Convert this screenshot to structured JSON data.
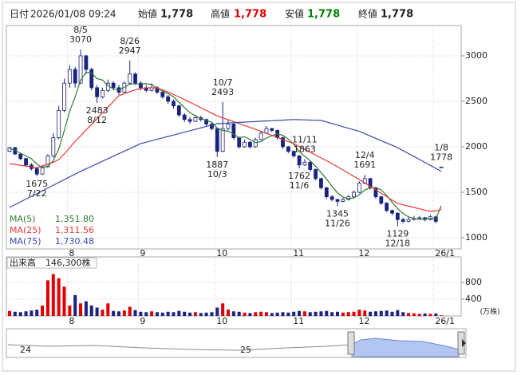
{
  "header": [
    {
      "label": "日付",
      "value": "2026/01/08 09:24",
      "color": "#222222"
    },
    {
      "label": "始値",
      "value": "1,778",
      "color": "#222222"
    },
    {
      "label": "高値",
      "value": "1,778",
      "color": "#e00000"
    },
    {
      "label": "安値",
      "value": "1,778",
      "color": "#008000"
    },
    {
      "label": "終値",
      "value": "1,778",
      "color": "#222222"
    }
  ],
  "chart_data": {
    "type": "candlestick",
    "categories": [
      null,
      null,
      null,
      null,
      null,
      null,
      null,
      null,
      null,
      null,
      null,
      "8",
      null,
      null,
      null,
      null,
      null,
      null,
      null,
      null,
      null,
      null,
      null,
      null,
      "9",
      null,
      null,
      null,
      null,
      null,
      null,
      null,
      null,
      null,
      null,
      null,
      null,
      null,
      "10",
      null,
      null,
      null,
      null,
      null,
      null,
      null,
      null,
      null,
      null,
      null,
      null,
      null,
      "11",
      null,
      null,
      null,
      null,
      null,
      null,
      null,
      null,
      null,
      null,
      null,
      "12",
      null,
      null,
      null,
      null,
      null,
      null,
      null,
      null,
      null,
      null,
      null,
      null,
      null,
      "26/1",
      null
    ],
    "candles": [
      [
        1950,
        2000,
        1940,
        1990
      ],
      [
        1990,
        2000,
        1910,
        1920
      ],
      [
        1920,
        1930,
        1850,
        1870
      ],
      [
        1870,
        1880,
        1780,
        1800
      ],
      [
        1800,
        1820,
        1740,
        1760
      ],
      [
        1760,
        1780,
        1675,
        1700
      ],
      [
        1700,
        1800,
        1690,
        1780
      ],
      [
        1780,
        1920,
        1770,
        1900
      ],
      [
        1900,
        2150,
        1880,
        2100
      ],
      [
        2100,
        2450,
        2080,
        2400
      ],
      [
        2400,
        2750,
        2380,
        2700
      ],
      [
        2700,
        2900,
        2650,
        2850
      ],
      [
        2850,
        2880,
        2650,
        2700
      ],
      [
        2700,
        3070,
        2690,
        3000
      ],
      [
        3000,
        3010,
        2800,
        2850
      ],
      [
        2850,
        2870,
        2620,
        2650
      ],
      [
        2650,
        2680,
        2483,
        2550
      ],
      [
        2550,
        2650,
        2530,
        2620
      ],
      [
        2620,
        2740,
        2600,
        2700
      ],
      [
        2700,
        2720,
        2620,
        2650
      ],
      [
        2650,
        2680,
        2570,
        2600
      ],
      [
        2600,
        2720,
        2590,
        2700
      ],
      [
        2700,
        2947,
        2690,
        2800
      ],
      [
        2800,
        2820,
        2680,
        2700
      ],
      [
        2700,
        2720,
        2620,
        2650
      ],
      [
        2650,
        2680,
        2600,
        2620
      ],
      [
        2620,
        2700,
        2610,
        2650
      ],
      [
        2650,
        2670,
        2580,
        2600
      ],
      [
        2600,
        2620,
        2530,
        2550
      ],
      [
        2550,
        2570,
        2470,
        2500
      ],
      [
        2500,
        2520,
        2420,
        2450
      ],
      [
        2450,
        2460,
        2330,
        2350
      ],
      [
        2350,
        2370,
        2270,
        2300
      ],
      [
        2300,
        2330,
        2250,
        2280
      ],
      [
        2280,
        2350,
        2270,
        2320
      ],
      [
        2320,
        2340,
        2280,
        2300
      ],
      [
        2300,
        2310,
        2230,
        2250
      ],
      [
        2250,
        2270,
        2180,
        2200
      ],
      [
        2200,
        2210,
        1887,
        1950
      ],
      [
        1950,
        2493,
        1940,
        2200
      ],
      [
        2200,
        2300,
        2180,
        2250
      ],
      [
        2250,
        2260,
        2080,
        2100
      ],
      [
        2100,
        2110,
        1980,
        2000
      ],
      [
        2000,
        2080,
        1990,
        2050
      ],
      [
        2050,
        2060,
        1980,
        2000
      ],
      [
        2000,
        2100,
        1990,
        2080
      ],
      [
        2080,
        2170,
        2070,
        2150
      ],
      [
        2150,
        2230,
        2140,
        2200
      ],
      [
        2200,
        2210,
        2160,
        2180
      ],
      [
        2180,
        2190,
        2080,
        2100
      ],
      [
        2100,
        2110,
        1980,
        2000
      ],
      [
        2000,
        2010,
        1930,
        1950
      ],
      [
        1950,
        1960,
        1880,
        1900
      ],
      [
        1900,
        1910,
        1762,
        1800
      ],
      [
        1800,
        1863,
        1790,
        1830
      ],
      [
        1830,
        1840,
        1730,
        1750
      ],
      [
        1750,
        1760,
        1630,
        1650
      ],
      [
        1650,
        1660,
        1530,
        1550
      ],
      [
        1550,
        1560,
        1430,
        1450
      ],
      [
        1450,
        1470,
        1400,
        1420
      ],
      [
        1420,
        1430,
        1345,
        1400
      ],
      [
        1400,
        1440,
        1390,
        1420
      ],
      [
        1420,
        1470,
        1410,
        1450
      ],
      [
        1450,
        1520,
        1440,
        1500
      ],
      [
        1500,
        1620,
        1490,
        1600
      ],
      [
        1600,
        1691,
        1590,
        1650
      ],
      [
        1650,
        1660,
        1530,
        1550
      ],
      [
        1550,
        1560,
        1430,
        1450
      ],
      [
        1450,
        1460,
        1360,
        1380
      ],
      [
        1380,
        1390,
        1280,
        1300
      ],
      [
        1300,
        1310,
        1250,
        1270
      ],
      [
        1270,
        1280,
        1129,
        1200
      ],
      [
        1200,
        1220,
        1160,
        1180
      ],
      [
        1180,
        1230,
        1170,
        1200
      ],
      [
        1200,
        1240,
        1190,
        1210
      ],
      [
        1210,
        1240,
        1200,
        1220
      ],
      [
        1220,
        1230,
        1180,
        1200
      ],
      [
        1200,
        1250,
        1190,
        1230
      ],
      [
        1230,
        1240,
        1160,
        1180
      ],
      [
        1778,
        1778,
        1778,
        1778
      ]
    ],
    "up_color": "#ffffff",
    "down_color": "#1a237e",
    "candle_edge": "#1a237e",
    "series": [
      {
        "name": "MA(5)",
        "color": "#2e7d32",
        "current": {
          "value": 1351.8,
          "label": "1,351.80"
        },
        "values": [
          1980,
          1960,
          1930,
          1900,
          1868,
          1810,
          1768,
          1788,
          1848,
          1976,
          2176,
          2390,
          2550,
          2730,
          2820,
          2810,
          2750,
          2734,
          2674,
          2634,
          2624,
          2654,
          2690,
          2690,
          2690,
          2694,
          2684,
          2644,
          2614,
          2584,
          2550,
          2490,
          2430,
          2376,
          2340,
          2310,
          2290,
          2270,
          2204,
          2180,
          2170,
          2140,
          2100,
          2110,
          2080,
          2046,
          2056,
          2096,
          2122,
          2142,
          2126,
          2086,
          2026,
          1950,
          1896,
          1846,
          1786,
          1716,
          1646,
          1564,
          1494,
          1448,
          1428,
          1438,
          1474,
          1524,
          1550,
          1550,
          1526,
          1466,
          1390,
          1320,
          1266,
          1230,
          1212,
          1202,
          1206,
          1212,
          1208,
          1351.8
        ]
      },
      {
        "name": "MA(25)",
        "color": "#e53935",
        "current": {
          "value": 1311.56,
          "label": "1,311.56"
        },
        "values": [
          1815,
          1806,
          1797,
          1788,
          1779,
          1770,
          1790,
          1810,
          1830,
          1860,
          1920,
          1990,
          2060,
          2120,
          2183,
          2246,
          2309,
          2372,
          2435,
          2500,
          2560,
          2585,
          2605,
          2625,
          2640,
          2648,
          2650,
          2645,
          2625,
          2600,
          2575,
          2548,
          2520,
          2490,
          2460,
          2430,
          2400,
          2370,
          2340,
          2318,
          2297,
          2276,
          2255,
          2234,
          2213,
          2191,
          2170,
          2148,
          2125,
          2103,
          2080,
          2058,
          2035,
          2004,
          1972,
          1941,
          1909,
          1878,
          1846,
          1815,
          1780,
          1745,
          1710,
          1675,
          1640,
          1602,
          1565,
          1527,
          1490,
          1452,
          1415,
          1377,
          1362,
          1348,
          1333,
          1318,
          1304,
          1290,
          1295,
          1311.56
        ]
      },
      {
        "name": "MA(75)",
        "color": "#3949ab",
        "current": {
          "value": 1730.48,
          "label": "1,730.48"
        },
        "values": [
          1333,
          1364,
          1394,
          1425,
          1455,
          1486,
          1516,
          1547,
          1578,
          1608,
          1639,
          1669,
          1700,
          1730,
          1758,
          1785,
          1813,
          1841,
          1869,
          1896,
          1924,
          1952,
          1980,
          2007,
          2035,
          2051,
          2066,
          2082,
          2098,
          2114,
          2129,
          2145,
          2161,
          2176,
          2192,
          2208,
          2224,
          2239,
          2255,
          2258,
          2261,
          2265,
          2268,
          2271,
          2274,
          2277,
          2281,
          2284,
          2287,
          2290,
          2293,
          2297,
          2300,
          2298,
          2296,
          2294,
          2292,
          2290,
          2273,
          2256,
          2239,
          2221,
          2204,
          2187,
          2170,
          2144,
          2119,
          2093,
          2067,
          2041,
          2016,
          1990,
          1958,
          1925,
          1893,
          1860,
          1828,
          1795,
          1763,
          1730.48
        ]
      }
    ],
    "annotations": [
      {
        "date": "7/22",
        "price": 1675,
        "at": "low"
      },
      {
        "date": "8/5",
        "price": 3070,
        "at": "high"
      },
      {
        "date": "8/12",
        "price": 2483,
        "at": "low"
      },
      {
        "date": "8/26",
        "price": 2947,
        "at": "high"
      },
      {
        "date": "10/3",
        "price": 1887,
        "at": "low"
      },
      {
        "date": "10/7",
        "price": 2493,
        "at": "high"
      },
      {
        "date": "11/6",
        "price": 1762,
        "at": "low"
      },
      {
        "date": "11/11",
        "price": 1863,
        "at": "high"
      },
      {
        "date": "11/26",
        "price": 1345,
        "at": "low"
      },
      {
        "date": "12/4",
        "price": 1691,
        "at": "high"
      },
      {
        "date": "12/18",
        "price": 1129,
        "at": "low"
      },
      {
        "date": "1/8",
        "price": 1778,
        "at": "high"
      }
    ],
    "ylim": [
      877,
      3333
    ],
    "yticks": [
      1000,
      1500,
      2000,
      2500,
      3000
    ],
    "grid": true,
    "volume": {
      "title": "出来高",
      "current": "146,300株",
      "unit": "(万株)",
      "up_color": "#e00000",
      "down_color": "#1a237e",
      "ylim": [
        0,
        1410
      ],
      "yticks": [
        400,
        800
      ],
      "values": [
        120,
        100,
        90,
        110,
        130,
        150,
        250,
        850,
        1000,
        900,
        700,
        250,
        500,
        300,
        350,
        250,
        200,
        150,
        300,
        120,
        110,
        130,
        220,
        140,
        100,
        90,
        110,
        90,
        80,
        100,
        90,
        120,
        100,
        80,
        90,
        70,
        80,
        90,
        200,
        300,
        150,
        110,
        100,
        80,
        70,
        90,
        100,
        90,
        70,
        80,
        90,
        80,
        100,
        120,
        110,
        90,
        100,
        110,
        120,
        90,
        100,
        80,
        90,
        100,
        150,
        130,
        100,
        110,
        120,
        130,
        100,
        140,
        90,
        70,
        60,
        50,
        60,
        50,
        60,
        14.63
      ]
    }
  },
  "navigator": {
    "labels": [
      "24",
      "25"
    ]
  }
}
